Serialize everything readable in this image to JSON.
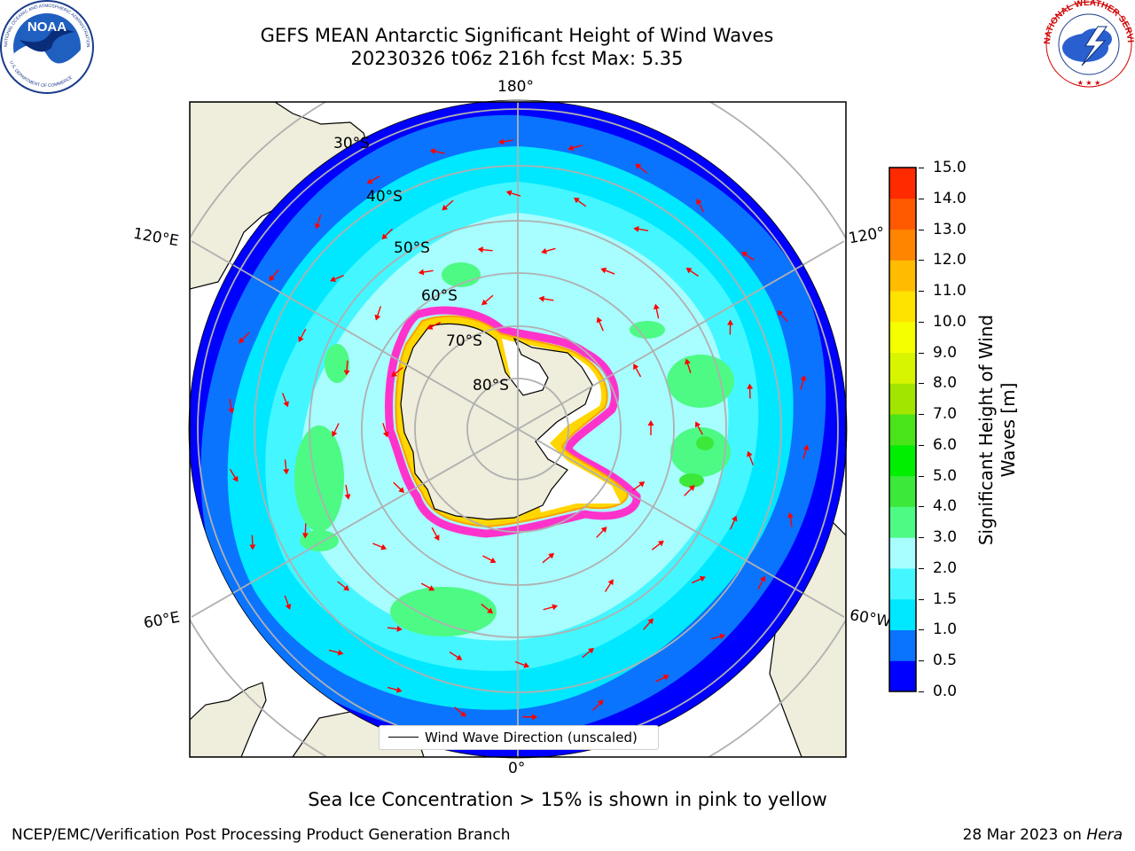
{
  "title": {
    "line1": "GEFS MEAN Antarctic Significant Height of Wind Waves",
    "line2": "20230326 t06z 216h fcst   Max: 5.35"
  },
  "logos": {
    "left": {
      "text": "NOAA",
      "ring_text": "NATIONAL OCEANIC AND ATMOSPHERIC ADMINISTRATION",
      "ring_text_bottom": "U.S. DEPARTMENT OF COMMERCE"
    },
    "right": {
      "ring_text": "NATIONAL WEATHER SERVICE"
    }
  },
  "map": {
    "longitude_labels": [
      "180°",
      "120°E",
      "120°",
      "60°E",
      "60°W",
      "0°"
    ],
    "latitude_labels": [
      "30°S",
      "40°S",
      "50°S",
      "60°S",
      "70°S",
      "80°S"
    ],
    "colors": {
      "land": "#efeddb",
      "outside": "#ffffff",
      "graticule": "#b0b0b0",
      "arrow": "#ff0000",
      "ice_edge": "#ff33cc"
    }
  },
  "legend": {
    "label": "Wind Wave Direction (unscaled)"
  },
  "colorbar": {
    "label_line1": "Significant Height of Wind",
    "label_line2": "Waves [m]",
    "ticks": [
      "0.0",
      "0.5",
      "1.0",
      "1.5",
      "2.0",
      "3.0",
      "4.0",
      "5.0",
      "6.0",
      "7.0",
      "8.0",
      "9.0",
      "10.0",
      "11.0",
      "12.0",
      "13.0",
      "14.0",
      "15.0"
    ],
    "colors": [
      "#0000ff",
      "#0a74ff",
      "#00e8ff",
      "#44f6ff",
      "#a8fdff",
      "#4dfa84",
      "#3ce83a",
      "#00ef00",
      "#4ae41a",
      "#a2e600",
      "#d7f400",
      "#f5ff00",
      "#ffe300",
      "#ffbc00",
      "#ff8400",
      "#ff5a00",
      "#ff2a00"
    ]
  },
  "note": "Sea Ice Concentration > 15% is shown in pink to yellow",
  "footer": {
    "left": "NCEP/EMC/Verification Post Processing Product Generation Branch",
    "date": "28 Mar 2023 on ",
    "host": "Hera"
  }
}
